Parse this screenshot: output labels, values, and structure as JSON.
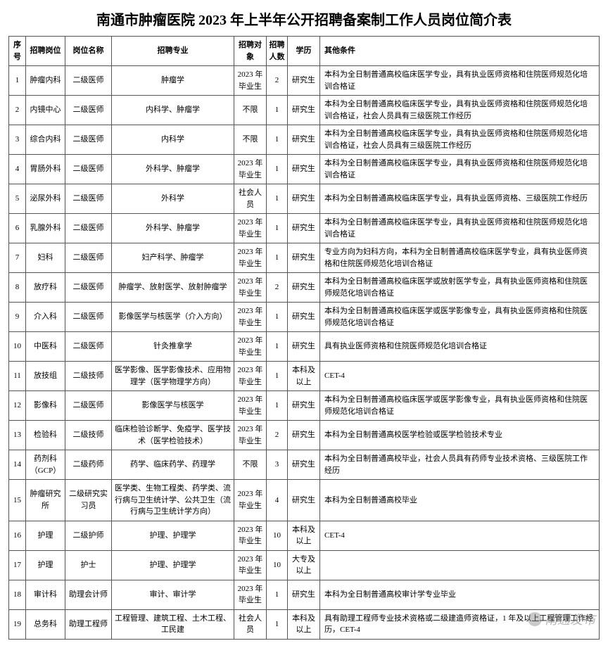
{
  "title": "南通市肿瘤医院 2023 年上半年公开招聘备案制工作人员岗位简介表",
  "watermark": "南通发布",
  "headers": {
    "seq": "序号",
    "dept": "招聘岗位",
    "pos": "岗位名称",
    "major": "招聘专业",
    "target": "招聘对象",
    "count": "招聘人数",
    "edu": "学历",
    "cond": "其他条件"
  },
  "rows": [
    {
      "seq": "1",
      "dept": "肿瘤内科",
      "pos": "二级医师",
      "major": "肿瘤学",
      "target": "2023 年毕业生",
      "count": "2",
      "edu": "研究生",
      "cond": "本科为全日制普通高校临床医学专业，具有执业医师资格和住院医师规范化培训合格证"
    },
    {
      "seq": "2",
      "dept": "内镜中心",
      "pos": "二级医师",
      "major": "内科学、肿瘤学",
      "target": "不限",
      "count": "1",
      "edu": "研究生",
      "cond": "本科为全日制普通高校临床医学专业，具有执业医师资格和住院医师规范化培训合格证，社会人员具有三级医院工作经历"
    },
    {
      "seq": "3",
      "dept": "综合内科",
      "pos": "二级医师",
      "major": "内科学",
      "target": "不限",
      "count": "1",
      "edu": "研究生",
      "cond": "本科为全日制普通高校临床医学专业，具有执业医师资格和住院医师规范化培训合格证，社会人员具有三级医院工作经历"
    },
    {
      "seq": "4",
      "dept": "胃肠外科",
      "pos": "二级医师",
      "major": "外科学、肿瘤学",
      "target": "2023 年毕业生",
      "count": "1",
      "edu": "研究生",
      "cond": "本科为全日制普通高校临床医学专业，具有执业医师资格和住院医师规范化培训合格证"
    },
    {
      "seq": "5",
      "dept": "泌尿外科",
      "pos": "二级医师",
      "major": "外科学",
      "target": "社会人员",
      "count": "1",
      "edu": "研究生",
      "cond": "本科为全日制普通高校临床医学专业，具有执业医师资格、三级医院工作经历"
    },
    {
      "seq": "6",
      "dept": "乳腺外科",
      "pos": "二级医师",
      "major": "外科学、肿瘤学",
      "target": "2023 年毕业生",
      "count": "1",
      "edu": "研究生",
      "cond": "本科为全日制普通高校临床医学专业，具有执业医师资格和住院医师规范化培训合格证"
    },
    {
      "seq": "7",
      "dept": "妇科",
      "pos": "二级医师",
      "major": "妇产科学、肿瘤学",
      "target": "2023 年毕业生",
      "count": "1",
      "edu": "研究生",
      "cond": "专业方向为妇科方向，本科为全日制普通高校临床医学专业，具有执业医师资格和住院医师规范化培训合格证"
    },
    {
      "seq": "8",
      "dept": "放疗科",
      "pos": "二级医师",
      "major": "肿瘤学、放射医学、放射肿瘤学",
      "target": "2023 年毕业生",
      "count": "2",
      "edu": "研究生",
      "cond": "本科为全日制普通高校临床医学或放射医学专业，具有执业医师资格和住院医师规范化培训合格证"
    },
    {
      "seq": "9",
      "dept": "介入科",
      "pos": "二级医师",
      "major": "影像医学与核医学（介入方向）",
      "target": "2023 年毕业生",
      "count": "1",
      "edu": "研究生",
      "cond": "本科为全日制普通高校临床医学或医学影像专业，具有执业医师资格和住院医师规范化培训合格证"
    },
    {
      "seq": "10",
      "dept": "中医科",
      "pos": "二级医师",
      "major": "针灸推拿学",
      "target": "2023 年毕业生",
      "count": "1",
      "edu": "研究生",
      "cond": "具有执业医师资格和住院医师规范化培训合格证"
    },
    {
      "seq": "11",
      "dept": "放技组",
      "pos": "二级技师",
      "major": "医学影像、医学影像技术、应用物理学（医学物理学方向）",
      "target": "2023 年毕业生",
      "count": "1",
      "edu": "本科及以上",
      "cond": "CET-4"
    },
    {
      "seq": "12",
      "dept": "影像科",
      "pos": "二级医师",
      "major": "影像医学与核医学",
      "target": "2023 年毕业生",
      "count": "1",
      "edu": "研究生",
      "cond": "本科为全日制普通高校临床医学或医学影像专业，具有执业医师资格和住院医师规范化培训合格证"
    },
    {
      "seq": "13",
      "dept": "检验科",
      "pos": "二级技师",
      "major": "临床检验诊断学、免疫学、医学技术（医学检验技术）",
      "target": "2023 年毕业生",
      "count": "2",
      "edu": "研究生",
      "cond": "本科为全日制普通高校医学检验或医学检验技术专业"
    },
    {
      "seq": "14",
      "dept": "药剂科（GCP）",
      "pos": "二级药师",
      "major": "药学、临床药学、药理学",
      "target": "不限",
      "count": "3",
      "edu": "研究生",
      "cond": "本科为全日制普通高校毕业，社会人员具有药师专业技术资格、三级医院工作经历"
    },
    {
      "seq": "15",
      "dept": "肿瘤研究所",
      "pos": "二级研究实习员",
      "major": "医学类、生物工程类、药学类、流行病与卫生统计学、公共卫生（流行病与卫生统计学方向）",
      "target": "2023 年毕业生",
      "count": "4",
      "edu": "研究生",
      "cond": "本科为全日制普通高校毕业"
    },
    {
      "seq": "16",
      "dept": "护理",
      "pos": "二级护师",
      "major": "护理、护理学",
      "target": "2023 年毕业生",
      "count": "10",
      "edu": "本科及以上",
      "cond": "CET-4"
    },
    {
      "seq": "17",
      "dept": "护理",
      "pos": "护士",
      "major": "护理、护理学",
      "target": "2023 年毕业生",
      "count": "10",
      "edu": "大专及以上",
      "cond": ""
    },
    {
      "seq": "18",
      "dept": "审计科",
      "pos": "助理会计师",
      "major": "审计、审计学",
      "target": "2023 年毕业生",
      "count": "1",
      "edu": "研究生",
      "cond": "本科为全日制普通高校审计学专业毕业"
    },
    {
      "seq": "19",
      "dept": "总务科",
      "pos": "助理工程师",
      "major": "工程管理、建筑工程、土木工程、工民建",
      "target": "社会人员",
      "count": "1",
      "edu": "本科及以上",
      "cond": "具有助理工程师专业技术资格或二级建造师资格证，1 年及以上工程管理工作经历，CET-4"
    }
  ]
}
